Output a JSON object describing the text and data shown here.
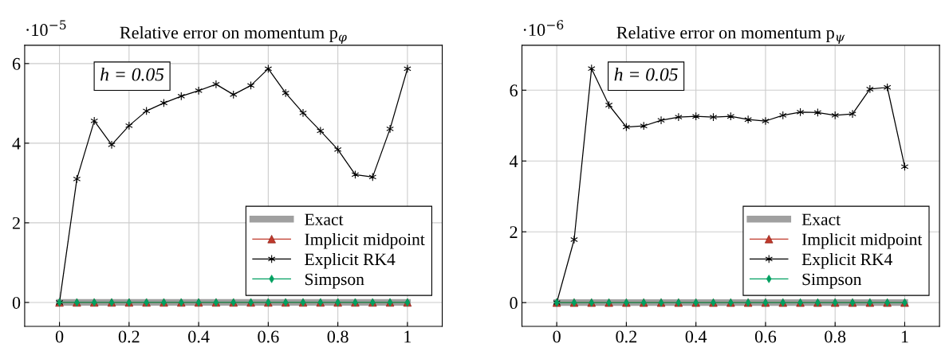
{
  "chart_data": [
    {
      "type": "line",
      "title": "Relative error on momentum p$_{φ}$",
      "annotations": [
        "·10$^{−5}$",
        "h = 0.05"
      ],
      "x": [
        0,
        0.05,
        0.1,
        0.15,
        0.2,
        0.25,
        0.3,
        0.35,
        0.4,
        0.45,
        0.5,
        0.55,
        0.6,
        0.65,
        0.7,
        0.75,
        0.8,
        0.85,
        0.9,
        0.95,
        1
      ],
      "series": [
        {
          "name": "Exact",
          "color": "#a0a0a0",
          "marker": "none",
          "values": [
            0,
            0,
            0,
            0,
            0,
            0,
            0,
            0,
            0,
            0,
            0,
            0,
            0,
            0,
            0,
            0,
            0,
            0,
            0,
            0,
            0
          ]
        },
        {
          "name": "Implicit midpoint",
          "color": "#c0392b",
          "marker": "triangle",
          "values": [
            0,
            0,
            0,
            0,
            0,
            0,
            0,
            0,
            0,
            0,
            0,
            0,
            0,
            0,
            0,
            0,
            0,
            0,
            0,
            0,
            0
          ]
        },
        {
          "name": "Explicit RK4",
          "color": "#000000",
          "marker": "cross",
          "values": [
            0,
            3.1,
            4.56,
            3.96,
            4.44,
            4.81,
            5.01,
            5.18,
            5.32,
            5.48,
            5.22,
            5.45,
            5.87,
            5.26,
            4.76,
            4.31,
            3.84,
            3.21,
            3.15,
            4.36,
            5.87
          ]
        },
        {
          "name": "Simpson",
          "color": "#00a060",
          "marker": "diamond",
          "values": [
            0,
            0,
            0,
            0,
            0,
            0,
            0,
            0,
            0,
            0,
            0,
            0,
            0,
            0,
            0,
            0,
            0,
            0,
            0,
            0,
            0
          ]
        }
      ],
      "xlim": [
        -0.1,
        1.1
      ],
      "ylim": [
        -0.6,
        6.46
      ],
      "xticks": [
        0,
        0.2,
        0.4,
        0.6,
        0.8,
        1
      ],
      "yticks": [
        0,
        2,
        4,
        6
      ],
      "grid": true,
      "legend": "bottom right"
    },
    {
      "type": "line",
      "title": "Relative error on momentum p$_{ψ}$",
      "annotations": [
        "·10$^{−6}$",
        "h = 0.05"
      ],
      "x": [
        0,
        0.05,
        0.1,
        0.15,
        0.2,
        0.25,
        0.3,
        0.35,
        0.4,
        0.45,
        0.5,
        0.55,
        0.6,
        0.65,
        0.7,
        0.75,
        0.8,
        0.85,
        0.9,
        0.95,
        1
      ],
      "series": [
        {
          "name": "Exact",
          "color": "#a0a0a0",
          "marker": "none",
          "values": [
            0,
            0,
            0,
            0,
            0,
            0,
            0,
            0,
            0,
            0,
            0,
            0,
            0,
            0,
            0,
            0,
            0,
            0,
            0,
            0,
            0
          ]
        },
        {
          "name": "Implicit midpoint",
          "color": "#c0392b",
          "marker": "triangle",
          "values": [
            0,
            0,
            0,
            0,
            0,
            0,
            0,
            0,
            0,
            0,
            0,
            0,
            0,
            0,
            0,
            0,
            0,
            0,
            0,
            0,
            0
          ]
        },
        {
          "name": "Explicit RK4",
          "color": "#000000",
          "marker": "cross",
          "values": [
            0,
            1.78,
            6.61,
            5.58,
            4.96,
            4.99,
            5.15,
            5.24,
            5.26,
            5.24,
            5.26,
            5.17,
            5.13,
            5.29,
            5.38,
            5.37,
            5.29,
            5.33,
            6.03,
            6.08,
            3.84
          ]
        },
        {
          "name": "Simpson",
          "color": "#00a060",
          "marker": "diamond",
          "values": [
            0,
            0,
            0,
            0,
            0,
            0,
            0,
            0,
            0,
            0,
            0,
            0,
            0,
            0,
            0,
            0,
            0,
            0,
            0,
            0,
            0
          ]
        }
      ],
      "xlim": [
        -0.1,
        1.1
      ],
      "ylim": [
        -0.67,
        7.27
      ],
      "xticks": [
        0,
        0.2,
        0.4,
        0.6,
        0.8,
        1
      ],
      "yticks": [
        0,
        2,
        4,
        6
      ],
      "grid": true,
      "legend": "bottom right"
    }
  ]
}
